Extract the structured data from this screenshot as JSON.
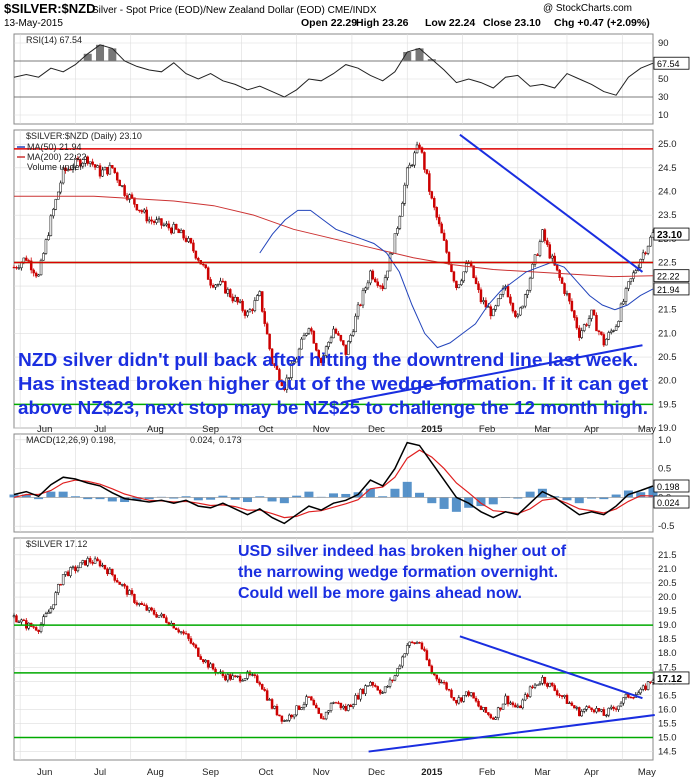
{
  "header": {
    "symbol": "$SILVER:$NZD",
    "description": "Silver - Spot Price (EOD)/New Zealand Dollar (EOD) CME/INDX",
    "date": "13-May-2015",
    "watermark": "@ StockCharts.com",
    "open": "Open 22.29",
    "high": "High 23.26",
    "low": "Low 22.24",
    "close": "Close 23.10",
    "change": "Chg +0.47 (+2.09%)"
  },
  "chart_data": [
    {
      "type": "line",
      "id": "rsi",
      "title": "RSI(14) 67.54",
      "ylim": [
        0,
        100
      ],
      "yticks": [
        10,
        30,
        50,
        70,
        90
      ],
      "reference_lines": [
        30,
        70
      ],
      "last_label": "67.54",
      "x": [
        "2015-05-13"
      ],
      "x_from": "2014-05-13",
      "values_weekly": [
        52,
        55,
        52,
        62,
        58,
        66,
        78,
        88,
        84,
        70,
        64,
        60,
        58,
        68,
        56,
        50,
        56,
        48,
        44,
        38,
        42,
        36,
        30,
        38,
        50,
        48,
        56,
        66,
        62,
        54,
        48,
        58,
        80,
        84,
        72,
        60,
        46,
        50,
        46,
        40,
        52,
        54,
        42,
        44,
        40,
        56,
        50,
        44,
        36,
        32,
        52,
        62,
        67.54
      ],
      "color": "#222222",
      "fill_above_70": "#777777",
      "fill_below_30": "#777777"
    },
    {
      "type": "candlestick",
      "id": "nzd",
      "title": "$SILVER:$NZD (Daily) 23.10",
      "legend": [
        "MA(50) 21.94",
        "MA(200) 22.22",
        "Volume undef"
      ],
      "ylim": [
        19.0,
        25.3
      ],
      "yticks": [
        19.0,
        19.5,
        20.0,
        20.5,
        21.0,
        21.5,
        22.0,
        22.5,
        23.0,
        23.5,
        24.0,
        24.5,
        25.0
      ],
      "last_labels": [
        "23.10",
        "22.22",
        "21.94"
      ],
      "close_weekly": [
        22.4,
        22.6,
        22.2,
        23.4,
        24.4,
        24.6,
        24.7,
        24.4,
        24.5,
        24.0,
        23.7,
        23.4,
        23.3,
        23.2,
        23.0,
        22.6,
        22.1,
        22.0,
        21.7,
        21.4,
        21.8,
        20.4,
        19.9,
        20.5,
        21.2,
        20.4,
        21.1,
        20.6,
        21.5,
        22.3,
        22.0,
        23.0,
        24.4,
        25.0,
        23.8,
        22.9,
        22.0,
        22.5,
        21.7,
        21.4,
        22.0,
        21.3,
        22.2,
        23.1,
        22.4,
        21.8,
        21.0,
        21.4,
        20.8,
        21.2,
        22.0,
        22.6,
        23.1
      ],
      "ma50_weekly": [
        22.7,
        23.1,
        23.4,
        23.6,
        23.6,
        23.4,
        23.2,
        23.1,
        23.0,
        22.9,
        22.7,
        22.3,
        21.6,
        21.0,
        20.7,
        20.8,
        21.0,
        21.2,
        21.6,
        21.9,
        22.1,
        22.3,
        22.4,
        22.5,
        22.4,
        22.1,
        21.8,
        21.6,
        21.5,
        21.6,
        21.8,
        21.94
      ],
      "ma200_weekly": [
        23.9,
        23.9,
        23.9,
        23.85,
        23.8,
        23.7,
        23.5,
        23.2,
        23.0,
        22.8,
        22.6,
        22.45,
        22.35,
        22.3,
        22.25,
        22.2,
        22.22
      ],
      "support_lines": [
        22.5,
        24.9,
        19.5
      ],
      "down_trendline": [
        [
          "2015-01-22",
          25.2
        ],
        [
          "2015-05-06",
          22.3
        ]
      ],
      "up_trendline": [
        [
          "2014-11-17",
          19.55
        ],
        [
          "2015-05-06",
          20.75
        ]
      ],
      "annotation": "NZD silver didn't pull back after hitting the downtrend line last week. Has instead broken higher out of the wedge formation. If it can get above NZ$23, next stop may be NZ$25 to challenge the 12 month high.",
      "annotation_lines": [
        "NZD silver didn't pull back after hitting the downtrend line last week.",
        "Has instead broken higher out of the wedge formation. If it can get",
        "above NZ$23, next stop may be NZ$25 to challenge the 12 month high."
      ]
    },
    {
      "type": "line",
      "id": "macd",
      "title": "MACD(12,26,9) 0.198, 0.024, 0.173",
      "title_parts": [
        "MACD(12,26,9) 0.198,",
        "0.024,",
        "0.173"
      ],
      "ylim": [
        -0.6,
        1.1
      ],
      "yticks": [
        -0.5,
        0.0,
        0.5,
        1.0
      ],
      "last_labels": [
        "0.198",
        "0.024"
      ],
      "macd_weekly": [
        0.05,
        0.1,
        0.02,
        0.22,
        0.35,
        0.32,
        0.25,
        0.2,
        0.08,
        -0.02,
        -0.05,
        -0.08,
        -0.05,
        -0.1,
        -0.05,
        -0.15,
        -0.18,
        -0.1,
        -0.2,
        -0.3,
        -0.2,
        -0.35,
        -0.45,
        -0.3,
        -0.15,
        -0.22,
        -0.1,
        -0.05,
        0.05,
        0.3,
        0.2,
        0.5,
        0.95,
        0.9,
        0.6,
        0.3,
        0.0,
        -0.1,
        -0.25,
        -0.35,
        -0.25,
        -0.3,
        -0.1,
        0.1,
        0.0,
        -0.15,
        -0.3,
        -0.25,
        -0.3,
        -0.15,
        0.05,
        0.12,
        0.198
      ],
      "signal_weekly": [
        0.0,
        0.05,
        0.05,
        0.12,
        0.25,
        0.3,
        0.28,
        0.23,
        0.15,
        0.06,
        0.0,
        -0.05,
        -0.06,
        -0.08,
        -0.07,
        -0.1,
        -0.14,
        -0.13,
        -0.16,
        -0.22,
        -0.22,
        -0.28,
        -0.35,
        -0.33,
        -0.25,
        -0.23,
        -0.17,
        -0.11,
        -0.04,
        0.15,
        0.18,
        0.35,
        0.68,
        0.82,
        0.7,
        0.5,
        0.25,
        0.08,
        -0.1,
        -0.23,
        -0.25,
        -0.28,
        -0.2,
        -0.05,
        -0.02,
        -0.1,
        -0.2,
        -0.23,
        -0.27,
        -0.2,
        -0.07,
        0.03,
        0.024
      ],
      "colors": {
        "macd": "#000000",
        "signal": "#e02020",
        "histogram": "#3a7fc0"
      }
    },
    {
      "type": "candlestick",
      "id": "usd",
      "title": "$SILVER 17.12",
      "ylim": [
        14.2,
        22.1
      ],
      "yticks": [
        14.5,
        15.0,
        15.5,
        16.0,
        16.5,
        17.0,
        17.5,
        18.0,
        18.5,
        19.0,
        19.5,
        20.0,
        20.5,
        21.0,
        21.5
      ],
      "last_labels": [
        "17.12"
      ],
      "close_weekly": [
        19.3,
        19.0,
        18.9,
        19.6,
        20.8,
        21.0,
        21.3,
        21.2,
        20.8,
        20.3,
        19.8,
        19.5,
        19.3,
        19.0,
        18.6,
        18.0,
        17.5,
        17.2,
        17.1,
        17.2,
        17.0,
        16.1,
        15.6,
        16.0,
        16.4,
        15.6,
        16.3,
        16.0,
        16.5,
        17.0,
        16.6,
        17.2,
        18.3,
        18.4,
        17.3,
        16.9,
        16.3,
        16.6,
        16.0,
        15.7,
        16.4,
        16.0,
        16.7,
        17.1,
        16.7,
        16.3,
        15.9,
        16.1,
        15.8,
        16.1,
        16.5,
        16.6,
        17.12
      ],
      "support_lines": [
        19.0,
        17.3,
        15.0
      ],
      "down_trendline": [
        [
          "2015-01-22",
          18.6
        ],
        [
          "2015-05-06",
          16.4
        ]
      ],
      "up_trendline": [
        [
          "2014-12-01",
          14.5
        ],
        [
          "2015-05-13",
          15.8
        ]
      ],
      "annotation": "USD silver indeed has broken higher out of the narrowing wedge formation overnight. Could well be more gains ahead now.",
      "annotation_lines": [
        "USD silver indeed has broken higher out of",
        "the narrowing wedge formation overnight.",
        "Could well be more gains ahead now."
      ]
    }
  ],
  "x_axis": {
    "labels": [
      "Jun",
      "Jul",
      "Aug",
      "Sep",
      "Oct",
      "Nov",
      "Dec",
      "2015",
      "Feb",
      "Mar",
      "Apr",
      "May"
    ],
    "label_weeks": [
      2.5,
      7,
      11.5,
      16,
      20.5,
      25,
      29.5,
      34,
      38.5,
      43,
      47,
      51.5
    ],
    "gridline_weeks": [
      0.5,
      5,
      9.5,
      14,
      18.5,
      23,
      27.5,
      32,
      36.5,
      41,
      45,
      49.5
    ]
  },
  "colors": {
    "support": "#00aa00",
    "resistance": "#dd0000",
    "trendline": "#1a2ee0",
    "ma50": "#2244bb",
    "ma200": "#cc3333",
    "candle_up": "#000000",
    "candle_down": "#cc0000"
  }
}
